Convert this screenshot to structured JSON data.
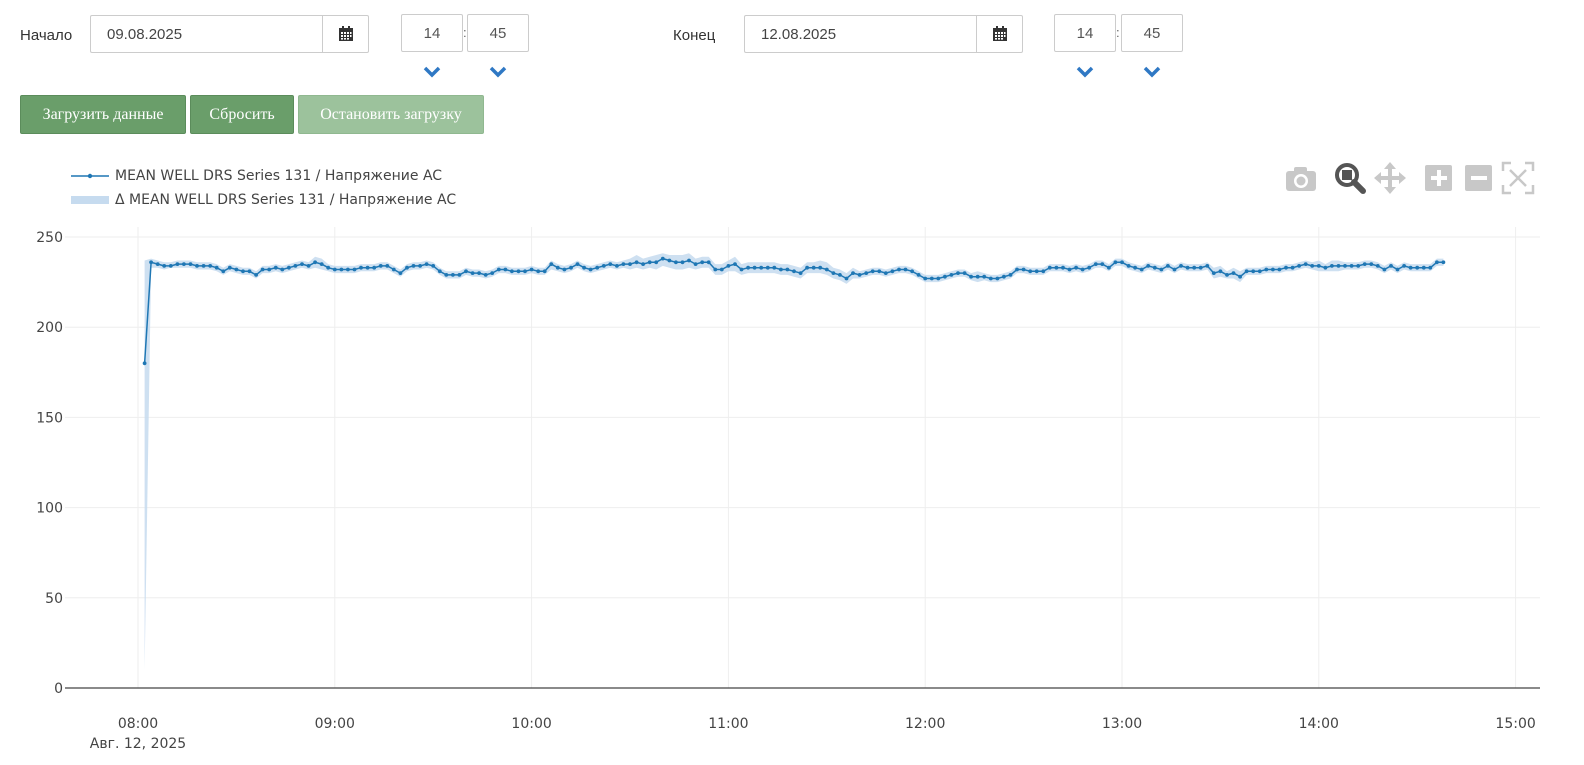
{
  "controls": {
    "start_label": "Начало",
    "start_date": "09.08.2025",
    "start_hour": "14",
    "start_minute": "45",
    "end_label": "Конец",
    "end_date": "12.08.2025",
    "end_hour": "14",
    "end_minute": "45",
    "time_separator": ":"
  },
  "buttons": {
    "load": "Загрузить данные",
    "reset": "Сбросить",
    "stop": "Остановить загрузку"
  },
  "toolbar": {
    "icons": [
      "camera-icon",
      "zoom-icon",
      "pan-icon",
      "zoom-in-icon",
      "zoom-out-icon",
      "autoscale-icon"
    ],
    "active": "zoom-icon"
  },
  "colors": {
    "line": "#1f77b4",
    "band": "#c6dbef",
    "primary_button": "#6a9e6a",
    "disabled_button": "#9cc29c",
    "chevron": "#2f78c4"
  },
  "chart_data": {
    "type": "line",
    "title": "",
    "xlabel": "",
    "ylabel": "",
    "legend_position": "top-left",
    "grid": true,
    "xlim": [
      "07:50",
      "15:00"
    ],
    "ylim": [
      0,
      250
    ],
    "x_ticks": [
      "08:00",
      "09:00",
      "10:00",
      "11:00",
      "12:00",
      "13:00",
      "14:00",
      "15:00"
    ],
    "x_date_label": "Авг. 12, 2025",
    "y_ticks": [
      0,
      50,
      100,
      150,
      200,
      250
    ],
    "series": [
      {
        "name": "MEAN WELL DRS Series 131 / Напряжение AC",
        "kind": "line+markers",
        "color": "#1f77b4",
        "x_start": "08:02",
        "x_step_minutes": 2,
        "values": [
          180,
          236,
          235,
          234,
          234,
          235,
          235,
          235,
          234,
          234,
          234,
          233,
          231,
          233,
          232,
          231,
          231,
          229,
          232,
          232,
          233,
          232,
          233,
          234,
          235,
          234,
          236,
          235,
          233,
          232,
          232,
          232,
          232,
          233,
          233,
          233,
          234,
          234,
          232,
          230,
          233,
          234,
          234,
          235,
          234,
          231,
          229,
          229,
          229,
          231,
          230,
          230,
          229,
          230,
          232,
          232,
          231,
          231,
          231,
          232,
          231,
          231,
          235,
          233,
          232,
          233,
          235,
          233,
          232,
          233,
          234,
          235,
          234,
          235,
          235,
          236,
          235,
          236,
          236,
          238,
          237,
          236,
          236,
          237,
          235,
          236,
          236,
          232,
          232,
          234,
          235,
          232,
          233,
          233,
          233,
          233,
          233,
          232,
          232,
          231,
          230,
          233,
          233,
          233,
          232,
          230,
          229,
          227,
          230,
          229,
          230,
          231,
          231,
          230,
          231,
          232,
          232,
          231,
          229,
          227,
          227,
          227,
          228,
          229,
          230,
          230,
          228,
          228,
          228,
          227,
          227,
          228,
          229,
          232,
          232,
          231,
          231,
          231,
          233,
          233,
          233,
          232,
          233,
          232,
          233,
          235,
          235,
          233,
          236,
          236,
          234,
          233,
          232,
          234,
          233,
          232,
          234,
          232,
          234,
          233,
          233,
          233,
          234,
          230,
          231,
          229,
          230,
          228,
          231,
          231,
          231,
          232,
          232,
          232,
          233,
          233,
          234,
          235,
          234,
          234,
          233,
          234,
          234,
          234,
          234,
          234,
          235,
          235,
          234,
          232,
          234,
          232,
          234,
          233,
          233,
          233,
          233,
          236,
          236
        ]
      },
      {
        "name": "Δ MEAN WELL DRS Series 131 / Напряжение AC",
        "kind": "band",
        "color": "#c6dbef",
        "x_start": "08:02",
        "x_step_minutes": 2,
        "lower": [
          10,
          233,
          233,
          232,
          233,
          233,
          233,
          233,
          232,
          232,
          232,
          231,
          229,
          231,
          230,
          229,
          229,
          227,
          230,
          230,
          231,
          230,
          231,
          232,
          233,
          232,
          233,
          232,
          231,
          230,
          230,
          230,
          230,
          231,
          231,
          231,
          232,
          232,
          230,
          228,
          231,
          232,
          232,
          233,
          232,
          229,
          227,
          227,
          227,
          229,
          228,
          228,
          227,
          228,
          230,
          230,
          229,
          229,
          229,
          230,
          229,
          229,
          232,
          231,
          230,
          231,
          233,
          231,
          230,
          231,
          232,
          233,
          232,
          233,
          232,
          233,
          232,
          233,
          232,
          234,
          233,
          232,
          232,
          233,
          232,
          233,
          233,
          229,
          229,
          231,
          231,
          229,
          230,
          230,
          230,
          230,
          230,
          229,
          229,
          228,
          227,
          230,
          230,
          230,
          229,
          227,
          226,
          224,
          227,
          227,
          228,
          229,
          229,
          228,
          229,
          230,
          230,
          229,
          227,
          225,
          225,
          225,
          226,
          227,
          228,
          228,
          226,
          225,
          226,
          225,
          225,
          226,
          227,
          230,
          230,
          229,
          229,
          229,
          231,
          231,
          231,
          230,
          231,
          230,
          231,
          233,
          233,
          231,
          234,
          234,
          232,
          231,
          230,
          232,
          231,
          230,
          232,
          230,
          232,
          231,
          231,
          231,
          232,
          227,
          228,
          227,
          227,
          225,
          229,
          229,
          229,
          230,
          230,
          230,
          231,
          231,
          232,
          233,
          232,
          231,
          231,
          231,
          231,
          232,
          232,
          232,
          233,
          233,
          232,
          230,
          232,
          230,
          232,
          231,
          231,
          231,
          231,
          234,
          234
        ],
        "upper": [
          237,
          238,
          237,
          236,
          236,
          237,
          237,
          237,
          236,
          236,
          236,
          235,
          233,
          235,
          234,
          233,
          233,
          231,
          234,
          234,
          235,
          234,
          235,
          236,
          237,
          236,
          239,
          238,
          235,
          234,
          234,
          234,
          234,
          235,
          235,
          235,
          236,
          236,
          234,
          232,
          235,
          236,
          236,
          237,
          236,
          233,
          231,
          231,
          231,
          233,
          232,
          232,
          231,
          232,
          234,
          234,
          233,
          233,
          233,
          234,
          233,
          233,
          237,
          235,
          234,
          235,
          237,
          235,
          234,
          235,
          236,
          237,
          236,
          237,
          238,
          240,
          238,
          239,
          240,
          241,
          240,
          240,
          240,
          241,
          238,
          239,
          239,
          235,
          235,
          237,
          239,
          235,
          236,
          236,
          236,
          236,
          236,
          235,
          235,
          234,
          233,
          236,
          236,
          237,
          236,
          233,
          232,
          230,
          233,
          231,
          232,
          233,
          233,
          232,
          233,
          234,
          234,
          233,
          231,
          229,
          229,
          229,
          230,
          231,
          232,
          232,
          230,
          231,
          230,
          229,
          229,
          230,
          231,
          234,
          234,
          233,
          233,
          233,
          235,
          235,
          235,
          234,
          235,
          234,
          235,
          237,
          237,
          235,
          238,
          238,
          236,
          235,
          234,
          236,
          235,
          234,
          236,
          234,
          236,
          235,
          235,
          235,
          236,
          233,
          234,
          231,
          233,
          231,
          233,
          233,
          233,
          234,
          234,
          234,
          235,
          235,
          236,
          237,
          236,
          237,
          235,
          237,
          237,
          236,
          236,
          236,
          237,
          237,
          236,
          234,
          236,
          234,
          236,
          235,
          235,
          235,
          235,
          238,
          238
        ]
      }
    ]
  }
}
